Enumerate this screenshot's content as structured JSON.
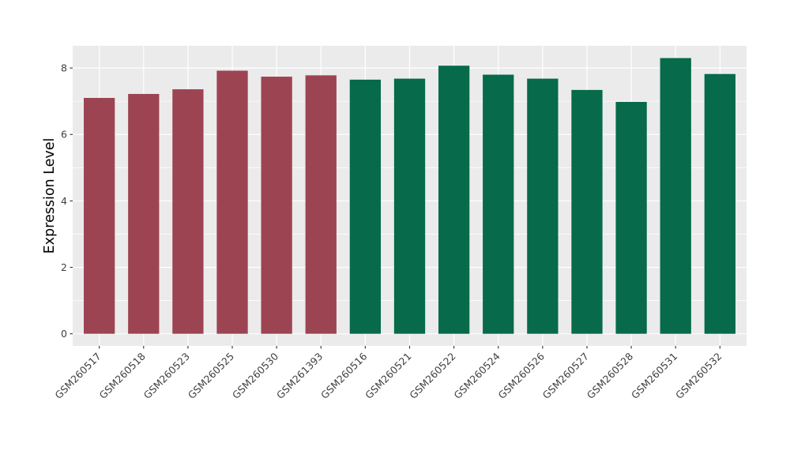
{
  "chart_data": {
    "type": "bar",
    "title": "",
    "xlabel": "",
    "ylabel": "Expression Level",
    "categories": [
      "GSM260517",
      "GSM260518",
      "GSM260523",
      "GSM260525",
      "GSM260530",
      "GSM261393",
      "GSM260516",
      "GSM260521",
      "GSM260522",
      "GSM260524",
      "GSM260526",
      "GSM260527",
      "GSM260528",
      "GSM260531",
      "GSM260532"
    ],
    "values": [
      7.1,
      7.22,
      7.36,
      7.92,
      7.74,
      7.78,
      7.65,
      7.68,
      8.07,
      7.8,
      7.68,
      7.34,
      6.98,
      8.3,
      7.82
    ],
    "bar_group_index": [
      0,
      0,
      0,
      0,
      0,
      0,
      1,
      1,
      1,
      1,
      1,
      1,
      1,
      1,
      1
    ],
    "group_colors": [
      "#9D4452",
      "#066A4B"
    ],
    "yticks": [
      0,
      2,
      4,
      6,
      8
    ],
    "yticks_minor": [
      1,
      3,
      5,
      7
    ],
    "ylim": [
      -0.364,
      8.669
    ],
    "bar_width_fraction": 0.7,
    "x_tick_label_angle_deg": 45,
    "legend": "none",
    "grid": "major-and-minor-horizontal, major-vertical-at-categories",
    "style": {
      "panel_background": "#EBEBEB",
      "grid_color": "#FFFFFF",
      "outer_background": "#FFFFFF",
      "axis_text_color": "#404040",
      "axis_title_color": "#000000",
      "tick_mark_color": "#333333"
    }
  }
}
